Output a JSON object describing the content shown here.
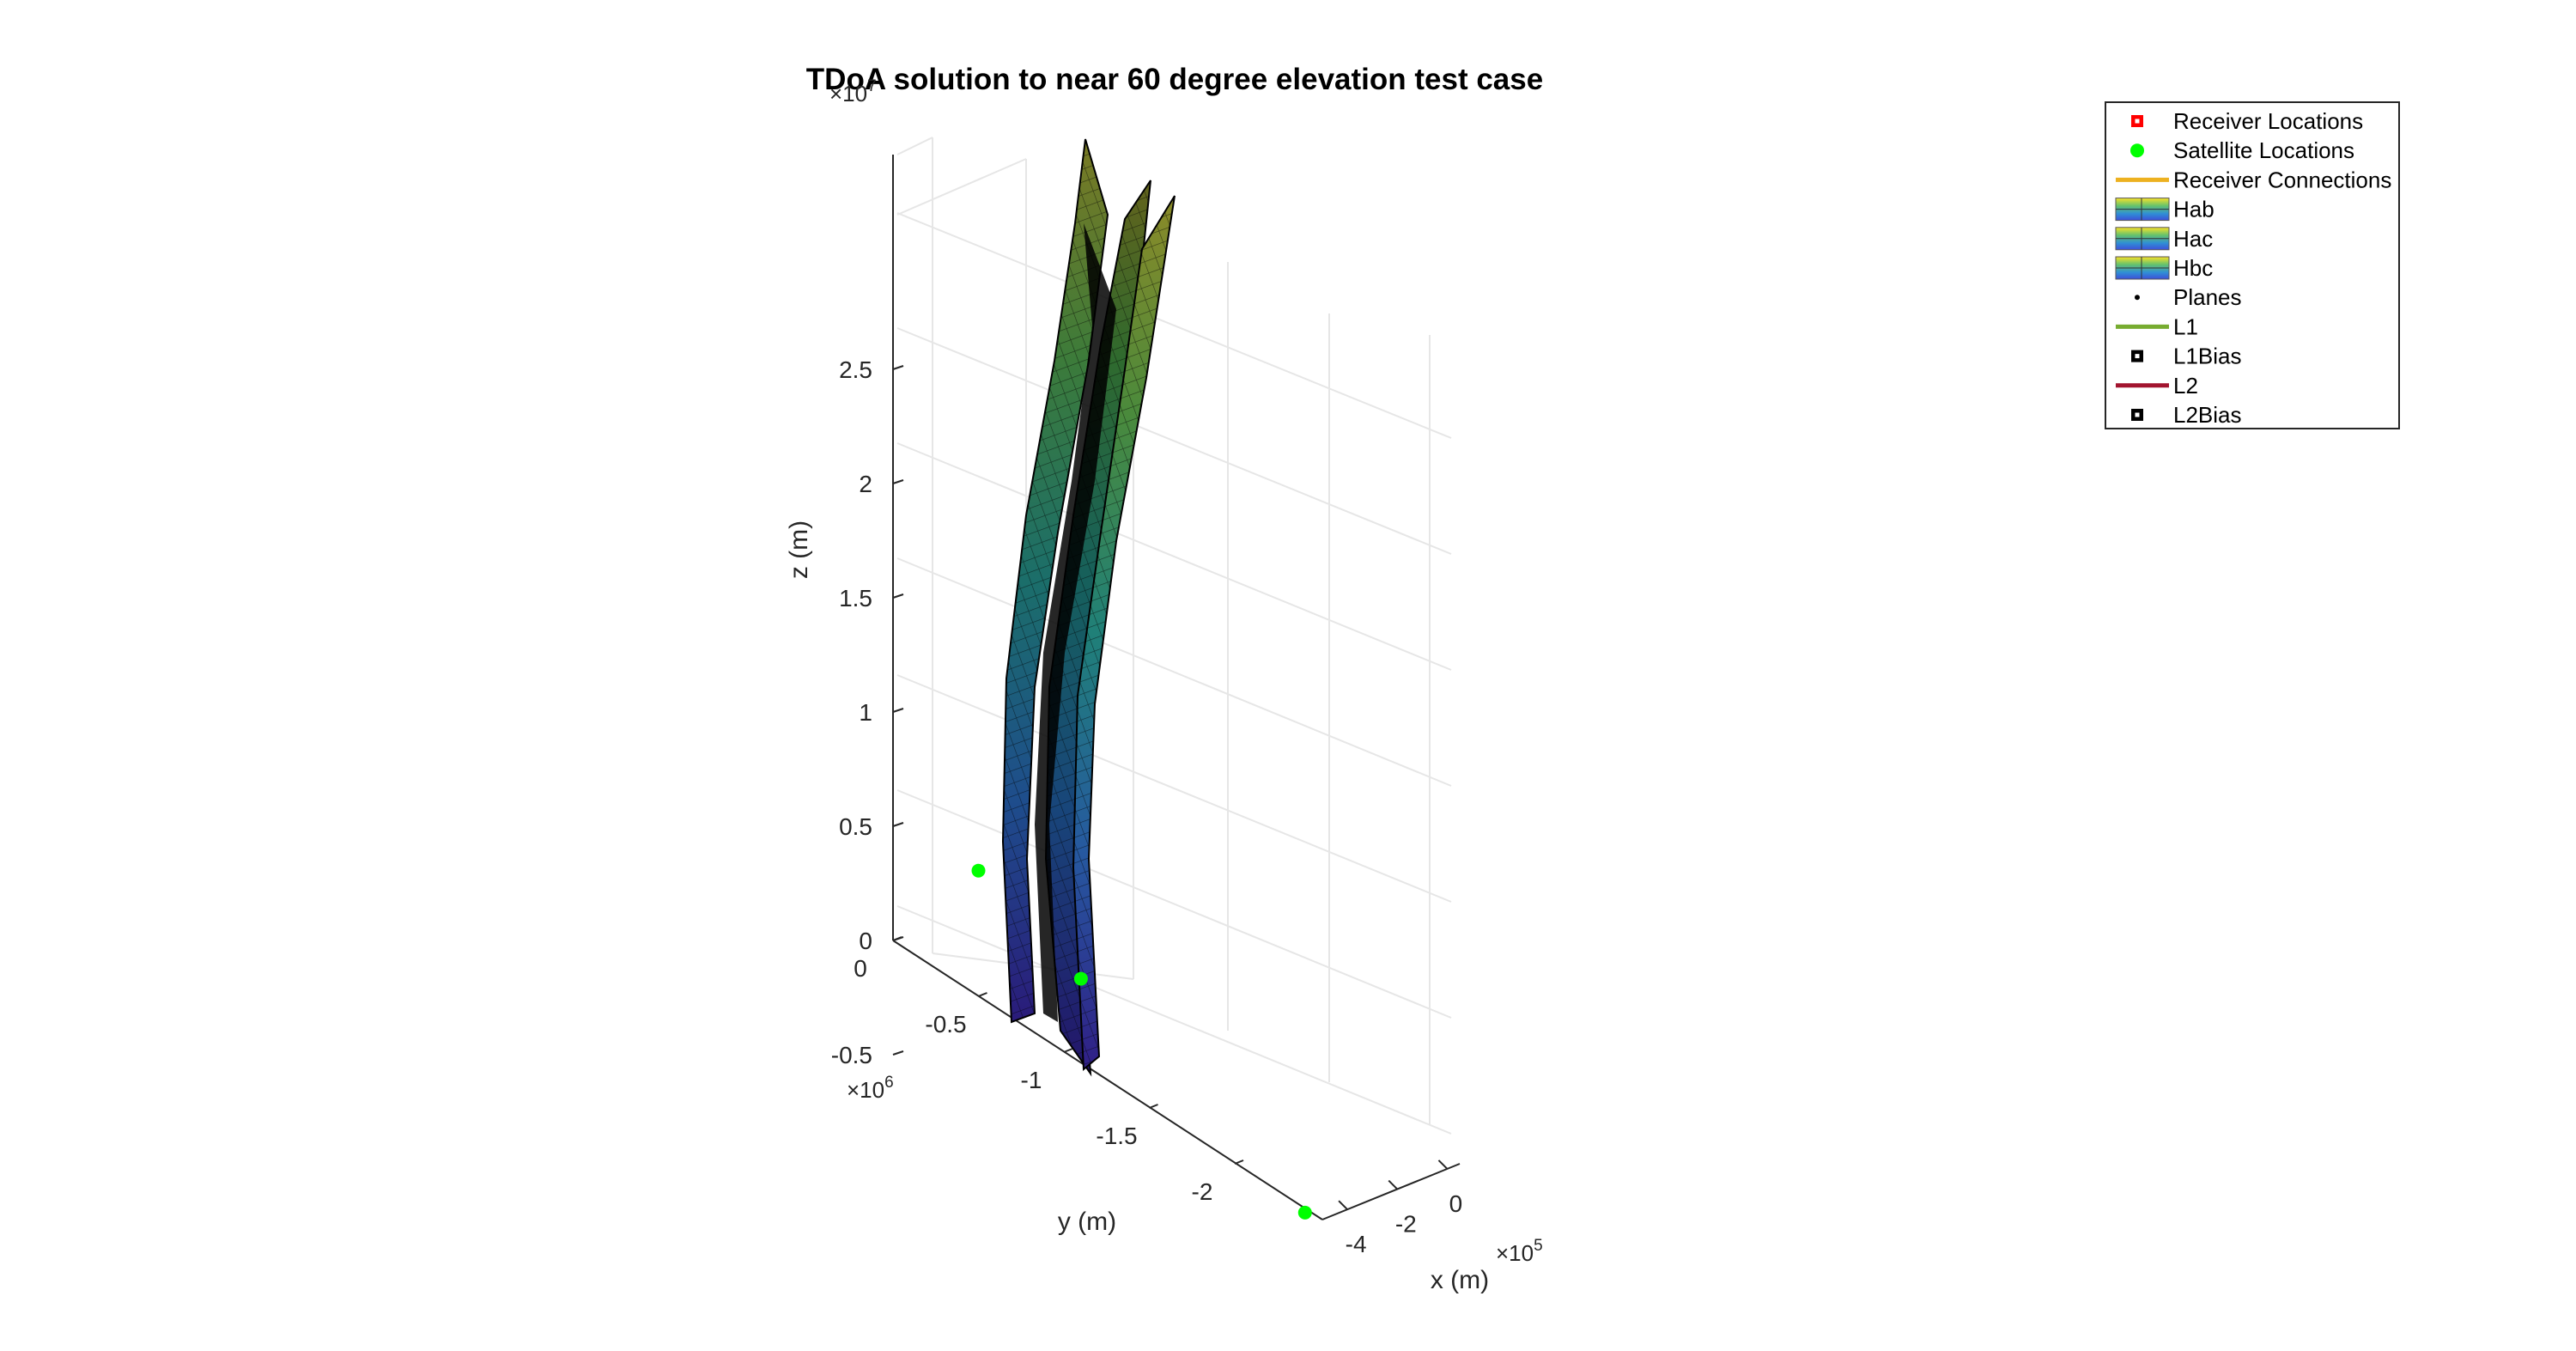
{
  "chart_data": {
    "type": "surface3d",
    "title": "TDoA solution to near 60 degree elevation test case",
    "xlabel": "x (m)",
    "ylabel": "y (m)",
    "zlabel": "z (m)",
    "x_exponent": "×10",
    "x_exponent_power": "5",
    "y_exponent": "×10",
    "y_exponent_power": "6",
    "z_exponent": "×10",
    "z_exponent_power": "7",
    "x_ticks": [
      "-4",
      "-2",
      "0"
    ],
    "y_ticks": [
      "0",
      "-0.5",
      "-1",
      "-1.5",
      "-2"
    ],
    "z_ticks": [
      "-0.5",
      "0",
      "0.5",
      "1",
      "1.5",
      "2",
      "2.5"
    ],
    "grid": true,
    "view": "3d",
    "colormap": "parula",
    "legend_position": "top-right",
    "legend": [
      {
        "label": "Receiver Locations",
        "marker": "square",
        "color": "#ff0000"
      },
      {
        "label": "Satellite Locations",
        "marker": "circle",
        "color": "#00ff00"
      },
      {
        "label": "Receiver Connections",
        "marker": "line",
        "color": "#edb120"
      },
      {
        "label": "Hab",
        "marker": "surface",
        "color": "#3d7cc9"
      },
      {
        "label": "Hac",
        "marker": "surface",
        "color": "#3d7cc9"
      },
      {
        "label": "Hbc",
        "marker": "surface",
        "color": "#3d7cc9"
      },
      {
        "label": "Planes",
        "marker": "dot",
        "color": "#000000"
      },
      {
        "label": "L1",
        "marker": "line",
        "color": "#77ac30"
      },
      {
        "label": "L1Bias",
        "marker": "square",
        "color": "#000000"
      },
      {
        "label": "L2",
        "marker": "line",
        "color": "#a2142f"
      },
      {
        "label": "L2Bias",
        "marker": "square",
        "color": "#000000"
      }
    ],
    "satellite_locations": [
      {
        "x": 0,
        "y": -500000,
        "z": 5500000
      },
      {
        "x": 0,
        "y": -1100000,
        "z": 3700000
      },
      {
        "x": -100000,
        "y": -2200000,
        "z": -1800000
      }
    ]
  }
}
